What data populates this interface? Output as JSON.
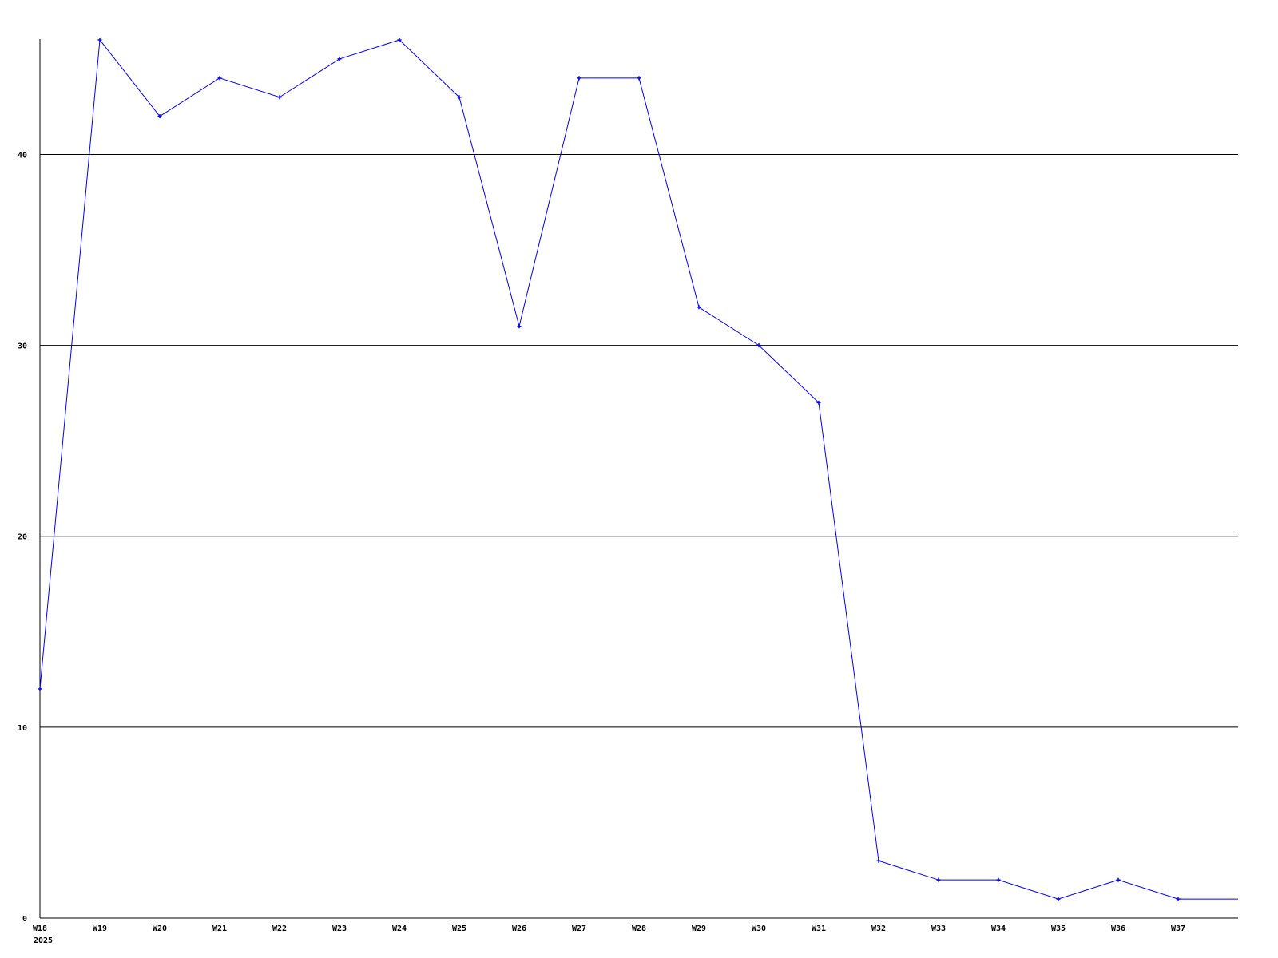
{
  "chart_data": {
    "type": "line",
    "title": "",
    "xlabel": "",
    "ylabel": "",
    "categories": [
      "W18",
      "W19",
      "W20",
      "W21",
      "W22",
      "W23",
      "W24",
      "W25",
      "W26",
      "W27",
      "W28",
      "W29",
      "W30",
      "W31",
      "W32",
      "W33",
      "W34",
      "W35",
      "W36",
      "W37",
      ""
    ],
    "x_sublabel": "2025",
    "series": [
      {
        "values": [
          12,
          46,
          42,
          44,
          43,
          45,
          46,
          43,
          31,
          44,
          44,
          32,
          30,
          27,
          3,
          2,
          2,
          1,
          2,
          1,
          1
        ],
        "color": "#0000ff"
      }
    ],
    "yticks": [
      0,
      10,
      20,
      30,
      40
    ],
    "ylim": [
      0,
      46
    ],
    "grid": "horizontal",
    "gridline_color": "#000000",
    "legend": "none"
  }
}
